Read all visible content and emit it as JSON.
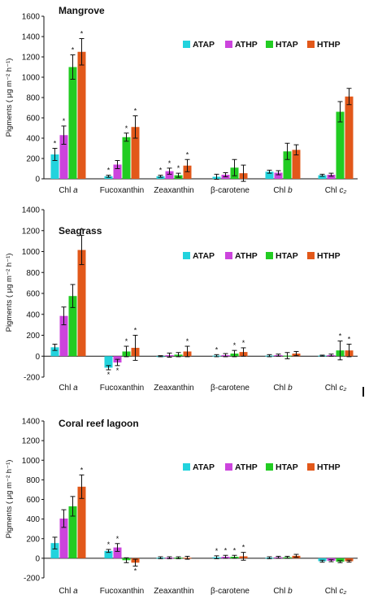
{
  "colors": {
    "ATAP": "#22d3dd",
    "ATHP": "#cc44dd",
    "HTAP": "#22cc22",
    "HTHP": "#e2581a",
    "axis": "#111111",
    "error": "#111111"
  },
  "chart_data": [
    {
      "type": "bar",
      "title": "Mangrove",
      "ylabel": "Pigments ( μg m⁻² h⁻¹)",
      "ylim": [
        0,
        1600
      ],
      "yticks": [
        0,
        200,
        400,
        600,
        800,
        1000,
        1200,
        1400,
        1600
      ],
      "legend_placement": "top-right",
      "categories": [
        "Chl a",
        "Fucoxanthin",
        "Zeaxanthin",
        "β-carotene",
        "Chl b",
        "Chl c₂"
      ],
      "series": [
        {
          "name": "ATAP",
          "values": [
            240,
            25,
            25,
            20,
            70,
            35
          ],
          "errors": [
            60,
            10,
            10,
            25,
            15,
            10
          ],
          "marked": [
            true,
            true,
            true,
            false,
            false,
            false
          ]
        },
        {
          "name": "ATHP",
          "values": [
            430,
            140,
            75,
            40,
            60,
            40
          ],
          "errors": [
            90,
            40,
            30,
            20,
            20,
            15
          ],
          "marked": [
            true,
            false,
            true,
            false,
            false,
            false
          ]
        },
        {
          "name": "HTAP",
          "values": [
            1100,
            410,
            35,
            110,
            270,
            660
          ],
          "errors": [
            120,
            40,
            20,
            80,
            80,
            100
          ],
          "marked": [
            true,
            true,
            true,
            false,
            false,
            false
          ]
        },
        {
          "name": "HTHP",
          "values": [
            1250,
            510,
            130,
            55,
            285,
            810
          ],
          "errors": [
            130,
            110,
            60,
            80,
            50,
            80
          ],
          "marked": [
            true,
            true,
            true,
            false,
            false,
            false
          ]
        }
      ]
    },
    {
      "type": "bar",
      "title": "Seagrass",
      "ylabel": "Pigments ( μg m⁻² h⁻¹)",
      "ylim": [
        -200,
        1400
      ],
      "yticks": [
        -200,
        0,
        200,
        400,
        600,
        800,
        1000,
        1200,
        1400
      ],
      "legend_placement": "top-right",
      "categories": [
        "Chl a",
        "Fucoxanthin",
        "Zeaxanthin",
        "β-carotene",
        "Chl b",
        "Chl c₂"
      ],
      "series": [
        {
          "name": "ATAP",
          "values": [
            85,
            -110,
            0,
            5,
            5,
            5
          ],
          "errors": [
            30,
            20,
            5,
            10,
            10,
            5
          ],
          "marked": [
            false,
            true,
            false,
            true,
            false,
            false
          ]
        },
        {
          "name": "ATHP",
          "values": [
            385,
            -60,
            10,
            10,
            10,
            10
          ],
          "errors": [
            85,
            30,
            20,
            15,
            10,
            10
          ],
          "marked": [
            false,
            true,
            false,
            false,
            false,
            false
          ]
        },
        {
          "name": "HTAP",
          "values": [
            575,
            45,
            15,
            25,
            5,
            55
          ],
          "errors": [
            110,
            50,
            20,
            30,
            30,
            90
          ],
          "marked": [
            false,
            true,
            false,
            true,
            false,
            true
          ]
        },
        {
          "name": "HTHP",
          "values": [
            1015,
            80,
            45,
            40,
            25,
            55
          ],
          "errors": [
            140,
            120,
            50,
            40,
            20,
            60
          ],
          "marked": [
            true,
            true,
            true,
            true,
            false,
            true
          ]
        }
      ]
    },
    {
      "type": "bar",
      "title": "Coral reef lagoon",
      "ylabel": "Pigments ( μg m⁻² h⁻¹)",
      "ylim": [
        -200,
        1400
      ],
      "yticks": [
        -200,
        0,
        200,
        400,
        600,
        800,
        1000,
        1200,
        1400
      ],
      "legend_placement": "top-right",
      "categories": [
        "Chl a",
        "Fucoxanthin",
        "Zeaxanthin",
        "β-carotene",
        "Chl b",
        "Chl c₂"
      ],
      "series": [
        {
          "name": "ATAP",
          "values": [
            155,
            75,
            5,
            10,
            5,
            -30
          ],
          "errors": [
            60,
            15,
            10,
            15,
            10,
            10
          ],
          "marked": [
            false,
            true,
            false,
            true,
            false,
            false
          ]
        },
        {
          "name": "ATHP",
          "values": [
            405,
            110,
            5,
            15,
            10,
            -25
          ],
          "errors": [
            90,
            40,
            10,
            15,
            10,
            10
          ],
          "marked": [
            false,
            true,
            false,
            true,
            false,
            false
          ]
        },
        {
          "name": "HTAP",
          "values": [
            530,
            -20,
            5,
            15,
            10,
            -35
          ],
          "errors": [
            100,
            25,
            10,
            15,
            10,
            10
          ],
          "marked": [
            false,
            false,
            false,
            true,
            false,
            false
          ]
        },
        {
          "name": "HTHP",
          "values": [
            730,
            -45,
            5,
            20,
            25,
            -30
          ],
          "errors": [
            120,
            35,
            15,
            40,
            15,
            10
          ],
          "marked": [
            true,
            true,
            false,
            true,
            false,
            false
          ]
        }
      ]
    }
  ]
}
